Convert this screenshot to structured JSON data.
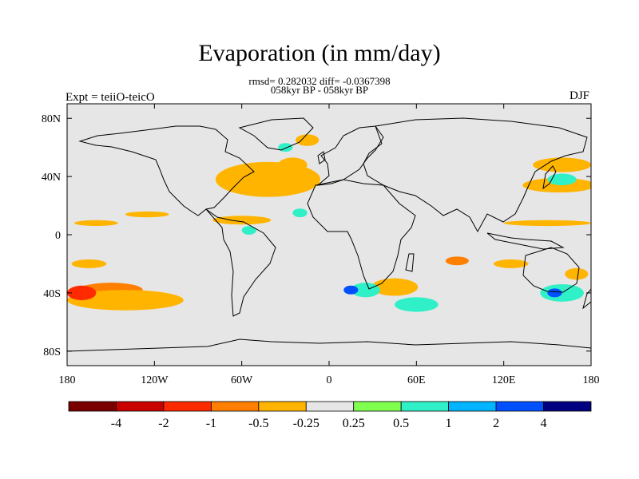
{
  "title": "Evaporation (in mm/day)",
  "subtitle_line1": "rmsd= 0.282032 diff= -0.0367398",
  "subtitle_line2": "058kyr BP - 058kyr BP",
  "left_label": "Expt = teiiO-teicO",
  "right_label": "DJF",
  "colors": {
    "background_map": "#e6e6e6",
    "coast": "#000000"
  },
  "chart_data": {
    "type": "heatmap",
    "projection": "cylindrical-equidistant",
    "lon_range": [
      -180,
      180
    ],
    "lat_range": [
      -90,
      90
    ],
    "x_ticks": [
      {
        "value": -180,
        "label": "180"
      },
      {
        "value": -120,
        "label": "120W"
      },
      {
        "value": -60,
        "label": "60W"
      },
      {
        "value": 0,
        "label": "0"
      },
      {
        "value": 60,
        "label": "60E"
      },
      {
        "value": 120,
        "label": "120E"
      },
      {
        "value": 180,
        "label": "180"
      }
    ],
    "y_ticks": [
      {
        "value": 80,
        "label": "80N"
      },
      {
        "value": 40,
        "label": "40N"
      },
      {
        "value": 0,
        "label": "0"
      },
      {
        "value": -40,
        "label": "40S"
      },
      {
        "value": -80,
        "label": "80S"
      }
    ],
    "colorbar": {
      "colors": [
        "#7a0000",
        "#c80000",
        "#ff2a00",
        "#ff7f00",
        "#ffb400",
        "#e6e6e6",
        "#80ff50",
        "#30f0c8",
        "#00b4ff",
        "#0050ff",
        "#000080"
      ],
      "labels": [
        "-4",
        "-2",
        "-1",
        "-0.5",
        "-0.25",
        "0.25",
        "0.5",
        "1",
        "2",
        "4"
      ]
    },
    "anomalies": [
      {
        "lon": -48,
        "lat": 37,
        "rx": 22,
        "ry": 6,
        "value": -2
      },
      {
        "lon": -40,
        "lat": 36,
        "rx": 30,
        "ry": 9,
        "value": -1
      },
      {
        "lon": -42,
        "lat": 38,
        "rx": 36,
        "ry": 12,
        "value": -0.5
      },
      {
        "lon": -25,
        "lat": 48,
        "rx": 10,
        "ry": 5,
        "value": -0.5
      },
      {
        "lon": -15,
        "lat": 65,
        "rx": 8,
        "ry": 4,
        "value": -0.5
      },
      {
        "lon": -30,
        "lat": 60,
        "rx": 5,
        "ry": 3,
        "value": 0.5
      },
      {
        "lon": 160,
        "lat": 48,
        "rx": 20,
        "ry": 5,
        "value": -0.5
      },
      {
        "lon": 158,
        "lat": 34,
        "rx": 25,
        "ry": 5,
        "value": -0.5
      },
      {
        "lon": 160,
        "lat": 38,
        "rx": 10,
        "ry": 4,
        "value": 0.5
      },
      {
        "lon": -150,
        "lat": -38,
        "rx": 22,
        "ry": 5,
        "value": -1
      },
      {
        "lon": -140,
        "lat": -45,
        "rx": 40,
        "ry": 7,
        "value": -0.5
      },
      {
        "lon": -170,
        "lat": -40,
        "rx": 10,
        "ry": 5,
        "value": -2
      },
      {
        "lon": 45,
        "lat": -36,
        "rx": 10,
        "ry": 4,
        "value": -2
      },
      {
        "lon": 45,
        "lat": -36,
        "rx": 16,
        "ry": 6,
        "value": -0.5
      },
      {
        "lon": 25,
        "lat": -38,
        "rx": 10,
        "ry": 5,
        "value": 0.5
      },
      {
        "lon": 15,
        "lat": -38,
        "rx": 5,
        "ry": 3,
        "value": 2
      },
      {
        "lon": 60,
        "lat": -48,
        "rx": 15,
        "ry": 5,
        "value": 0.5
      },
      {
        "lon": 160,
        "lat": -40,
        "rx": 15,
        "ry": 6,
        "value": 0.5
      },
      {
        "lon": 155,
        "lat": -40,
        "rx": 5,
        "ry": 3,
        "value": 2
      },
      {
        "lon": 170,
        "lat": -27,
        "rx": 8,
        "ry": 4,
        "value": -0.5
      },
      {
        "lon": 88,
        "lat": -18,
        "rx": 8,
        "ry": 3,
        "value": -1
      },
      {
        "lon": 125,
        "lat": -20,
        "rx": 12,
        "ry": 3,
        "value": -0.5
      },
      {
        "lon": -165,
        "lat": -20,
        "rx": 12,
        "ry": 3,
        "value": -0.5
      },
      {
        "lon": -125,
        "lat": 14,
        "rx": 15,
        "ry": 2,
        "value": -0.5
      },
      {
        "lon": 150,
        "lat": 8,
        "rx": 30,
        "ry": 2,
        "value": -0.5
      },
      {
        "lon": -160,
        "lat": 8,
        "rx": 15,
        "ry": 2,
        "value": -0.5
      },
      {
        "lon": -60,
        "lat": 10,
        "rx": 20,
        "ry": 3,
        "value": -0.5
      },
      {
        "lon": -20,
        "lat": 15,
        "rx": 5,
        "ry": 3,
        "value": 0.5
      },
      {
        "lon": -55,
        "lat": 3,
        "rx": 5,
        "ry": 3,
        "value": 0.5
      }
    ]
  }
}
